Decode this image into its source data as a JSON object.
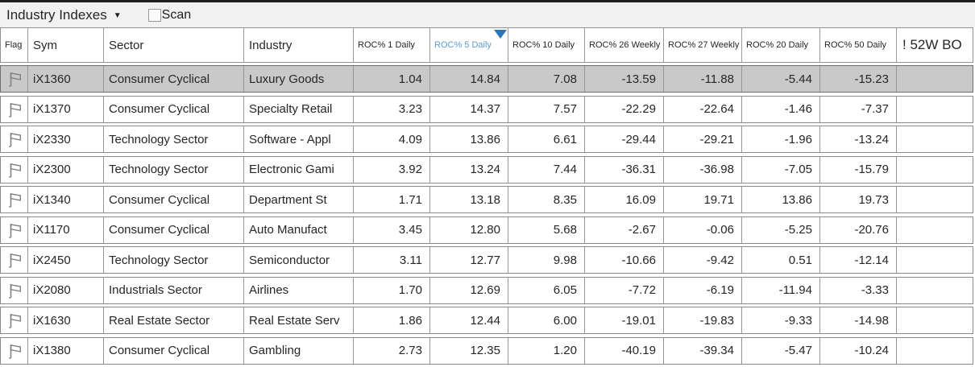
{
  "toolbar": {
    "list_selector": {
      "label": "Industry Indexes",
      "arrow": "▼"
    },
    "scan": {
      "label": "Scan",
      "checked": false
    }
  },
  "table": {
    "sort": {
      "column": "roc5d",
      "direction": "desc"
    },
    "columns": [
      {
        "key": "flag",
        "label": "Flag"
      },
      {
        "key": "sym",
        "label": "Sym"
      },
      {
        "key": "sector",
        "label": "Sector"
      },
      {
        "key": "industry",
        "label": "Industry"
      },
      {
        "key": "roc1d",
        "label": "ROC% 1 Daily"
      },
      {
        "key": "roc5d",
        "label": "ROC% 5 Daily",
        "sorted": true
      },
      {
        "key": "roc10d",
        "label": "ROC% 10 Daily"
      },
      {
        "key": "roc26w",
        "label": "ROC% 26 Weekly"
      },
      {
        "key": "roc27w",
        "label": "ROC% 27 Weekly"
      },
      {
        "key": "roc20d",
        "label": "ROC% 20 Daily"
      },
      {
        "key": "roc50d",
        "label": "ROC% 50 Daily"
      },
      {
        "key": "bo52",
        "label": "! 52W BO"
      }
    ],
    "rows": [
      {
        "selected": true,
        "sym": "iX1360",
        "sector": "Consumer Cyclical",
        "industry": "Luxury Goods",
        "roc1d": "1.04",
        "roc5d": "14.84",
        "roc10d": "7.08",
        "roc26w": "-13.59",
        "roc27w": "-11.88",
        "roc20d": "-5.44",
        "roc50d": "-15.23",
        "bo52": ""
      },
      {
        "selected": false,
        "sym": "iX1370",
        "sector": "Consumer Cyclical",
        "industry": "Specialty Retail",
        "roc1d": "3.23",
        "roc5d": "14.37",
        "roc10d": "7.57",
        "roc26w": "-22.29",
        "roc27w": "-22.64",
        "roc20d": "-1.46",
        "roc50d": "-7.37",
        "bo52": ""
      },
      {
        "selected": false,
        "sym": "iX2330",
        "sector": "Technology Sector",
        "industry": "Software - Appl",
        "roc1d": "4.09",
        "roc5d": "13.86",
        "roc10d": "6.61",
        "roc26w": "-29.44",
        "roc27w": "-29.21",
        "roc20d": "-1.96",
        "roc50d": "-13.24",
        "bo52": ""
      },
      {
        "selected": false,
        "sym": "iX2300",
        "sector": "Technology Sector",
        "industry": "Electronic Gami",
        "roc1d": "3.92",
        "roc5d": "13.24",
        "roc10d": "7.44",
        "roc26w": "-36.31",
        "roc27w": "-36.98",
        "roc20d": "-7.05",
        "roc50d": "-15.79",
        "bo52": ""
      },
      {
        "selected": false,
        "sym": "iX1340",
        "sector": "Consumer Cyclical",
        "industry": "Department St",
        "roc1d": "1.71",
        "roc5d": "13.18",
        "roc10d": "8.35",
        "roc26w": "16.09",
        "roc27w": "19.71",
        "roc20d": "13.86",
        "roc50d": "19.73",
        "bo52": ""
      },
      {
        "selected": false,
        "sym": "iX1170",
        "sector": "Consumer Cyclical",
        "industry": "Auto Manufact",
        "roc1d": "3.45",
        "roc5d": "12.80",
        "roc10d": "5.68",
        "roc26w": "-2.67",
        "roc27w": "-0.06",
        "roc20d": "-5.25",
        "roc50d": "-20.76",
        "bo52": ""
      },
      {
        "selected": false,
        "sym": "iX2450",
        "sector": "Technology Sector",
        "industry": "Semiconductor",
        "roc1d": "3.11",
        "roc5d": "12.77",
        "roc10d": "9.98",
        "roc26w": "-10.66",
        "roc27w": "-9.42",
        "roc20d": "0.51",
        "roc50d": "-12.14",
        "bo52": ""
      },
      {
        "selected": false,
        "sym": "iX2080",
        "sector": "Industrials Sector",
        "industry": "Airlines",
        "roc1d": "1.70",
        "roc5d": "12.69",
        "roc10d": "6.05",
        "roc26w": "-7.72",
        "roc27w": "-6.19",
        "roc20d": "-11.94",
        "roc50d": "-3.33",
        "bo52": ""
      },
      {
        "selected": false,
        "sym": "iX1630",
        "sector": "Real Estate Sector",
        "industry": "Real Estate Serv",
        "roc1d": "1.86",
        "roc5d": "12.44",
        "roc10d": "6.00",
        "roc26w": "-19.01",
        "roc27w": "-19.83",
        "roc20d": "-9.33",
        "roc50d": "-14.98",
        "bo52": ""
      },
      {
        "selected": false,
        "sym": "iX1380",
        "sector": "Consumer Cyclical",
        "industry": "Gambling",
        "roc1d": "2.73",
        "roc5d": "12.35",
        "roc10d": "1.20",
        "roc26w": "-40.19",
        "roc27w": "-39.34",
        "roc20d": "-5.47",
        "roc50d": "-10.24",
        "bo52": ""
      }
    ]
  },
  "colors": {
    "sort_accent": "#2e75b6",
    "sorted_header_text": "#5b9bd5",
    "selected_row_bg": "#c9c9c9",
    "toolbar_bg": "#f1f1f1",
    "grid_line": "#8a8a8a"
  }
}
